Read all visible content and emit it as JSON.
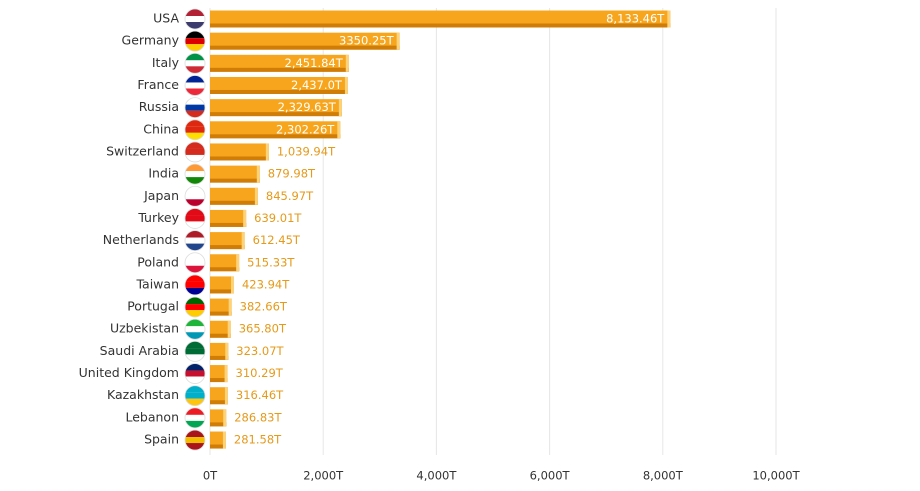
{
  "chart_data": {
    "type": "bar",
    "orientation": "horizontal",
    "categories": [
      "USA",
      "Germany",
      "Italy",
      "France",
      "Russia",
      "China",
      "Switzerland",
      "India",
      "Japan",
      "Turkey",
      "Netherlands",
      "Poland",
      "Taiwan",
      "Portugal",
      "Uzbekistan",
      "Saudi Arabia",
      "United Kingdom",
      "Kazakhstan",
      "Lebanon",
      "Spain"
    ],
    "values": [
      8133.46,
      3350.25,
      2451.84,
      2437.0,
      2329.63,
      2302.26,
      1039.94,
      879.98,
      845.97,
      639.01,
      612.45,
      515.33,
      423.94,
      382.66,
      365.8,
      323.07,
      310.29,
      316.46,
      286.83,
      281.58
    ],
    "value_labels": [
      "8,133.46T",
      "3350.25T",
      "2,451.84T",
      "2,437.0T",
      "2,329.63T",
      "2,302.26T",
      "1,039.94T",
      "879.98T",
      "845.97T",
      "639.01T",
      "612.45T",
      "515.33T",
      "423.94T",
      "382.66T",
      "365.80T",
      "323.07T",
      "310.29T",
      "316.46T",
      "286.83T",
      "281.58T"
    ],
    "color": "#f7a51c",
    "xlim": [
      0,
      10000
    ],
    "xticks": [
      {
        "value": 0,
        "label": "0T"
      },
      {
        "value": 2000,
        "label": "2,000T"
      },
      {
        "value": 4000,
        "label": "4,000T"
      },
      {
        "value": 6000,
        "label": "6,000T"
      },
      {
        "value": 8000,
        "label": "8,000T"
      },
      {
        "value": 10000,
        "label": "10,000T"
      }
    ],
    "grid": true
  }
}
